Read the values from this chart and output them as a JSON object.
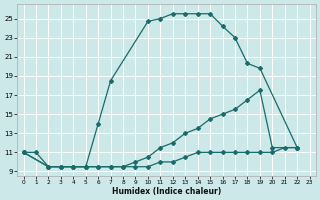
{
  "xlabel": "Humidex (Indice chaleur)",
  "bg_color": "#cce8e8",
  "grid_color": "#ffffff",
  "line_color": "#1a6b6b",
  "xlim": [
    -0.5,
    23.5
  ],
  "ylim": [
    8.5,
    26.5
  ],
  "xticks": [
    0,
    1,
    2,
    3,
    4,
    5,
    6,
    7,
    8,
    9,
    10,
    11,
    12,
    13,
    14,
    15,
    16,
    17,
    18,
    19,
    20,
    21,
    22,
    23
  ],
  "yticks": [
    9,
    11,
    13,
    15,
    17,
    19,
    21,
    23,
    25
  ],
  "series": [
    {
      "x": [
        0,
        1,
        2,
        3,
        4,
        5,
        6,
        7,
        10,
        11,
        12,
        13,
        14,
        15,
        16,
        17,
        18,
        19,
        22
      ],
      "y": [
        11,
        11,
        9.5,
        9.5,
        9.5,
        9.5,
        14,
        18.5,
        24.7,
        25.0,
        25.5,
        25.5,
        25.5,
        25.5,
        24.2,
        23.0,
        20.3,
        19.8,
        11.5
      ]
    },
    {
      "x": [
        0,
        2,
        3,
        4,
        5,
        6,
        7,
        8,
        9,
        10,
        11,
        12,
        13,
        14,
        15,
        16,
        17,
        18,
        19,
        20,
        22
      ],
      "y": [
        11,
        9.5,
        9.5,
        9.5,
        9.5,
        9.5,
        9.5,
        9.5,
        10.0,
        10.5,
        11.5,
        12.0,
        13.0,
        13.5,
        14.5,
        15.0,
        15.5,
        16.5,
        17.5,
        11.5,
        11.5
      ]
    },
    {
      "x": [
        0,
        2,
        3,
        4,
        5,
        6,
        7,
        8,
        9,
        10,
        11,
        12,
        13,
        14,
        15,
        16,
        17,
        18,
        19,
        20,
        21,
        22
      ],
      "y": [
        11,
        9.5,
        9.5,
        9.5,
        9.5,
        9.5,
        9.5,
        9.5,
        9.5,
        9.5,
        10.0,
        10.0,
        10.5,
        11.0,
        11.0,
        11.0,
        11.0,
        11.0,
        11.0,
        11.0,
        11.5,
        11.5
      ]
    }
  ]
}
